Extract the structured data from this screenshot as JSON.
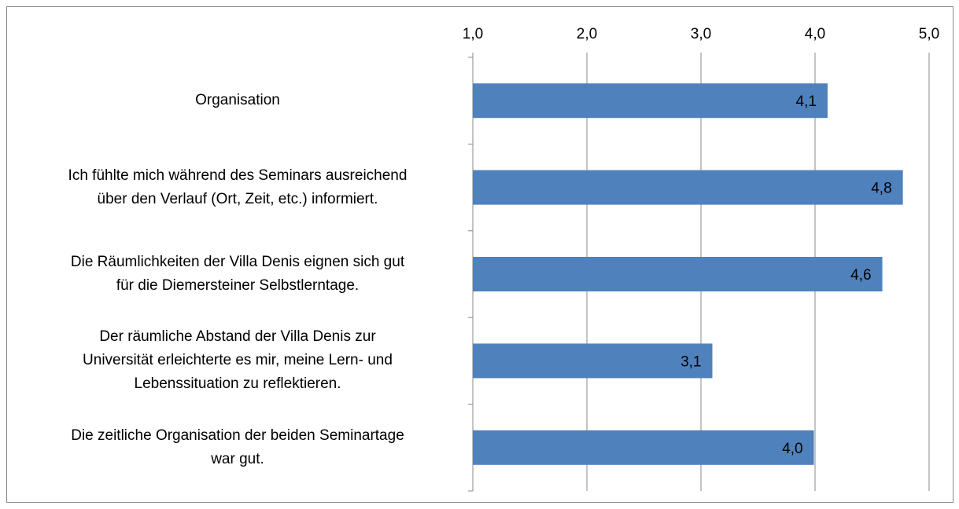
{
  "chart_data": {
    "type": "barh",
    "categories": [
      "Organisation",
      "Ich fühlte mich während des Seminars ausreichend\nüber den Verlauf (Ort, Zeit, etc.) informiert.",
      "Die Räumlichkeiten der Villa Denis eignen sich gut\nfür die Diemersteiner Selbstlerntage.",
      "Der räumliche Abstand der Villa Denis zur\nUniversität erleichterte es mir, meine Lern- und\nLebenssituation zu reflektieren.",
      "Die zeitliche Organisation der beiden Seminartage\nwar gut."
    ],
    "values": [
      4.11,
      4.77,
      4.59,
      3.1,
      3.99
    ],
    "value_labels": [
      "4,1",
      "4,8",
      "4,6",
      "3,1",
      "4,0"
    ],
    "color": "#4f81bd",
    "xlim": [
      1,
      5
    ],
    "xticks": [
      {
        "value": 1,
        "label": "1,0"
      },
      {
        "value": 2,
        "label": "2,0"
      },
      {
        "value": 3,
        "label": "3,0"
      },
      {
        "value": 4,
        "label": "4,0"
      },
      {
        "value": 5,
        "label": "5,0"
      }
    ],
    "grid": true
  }
}
